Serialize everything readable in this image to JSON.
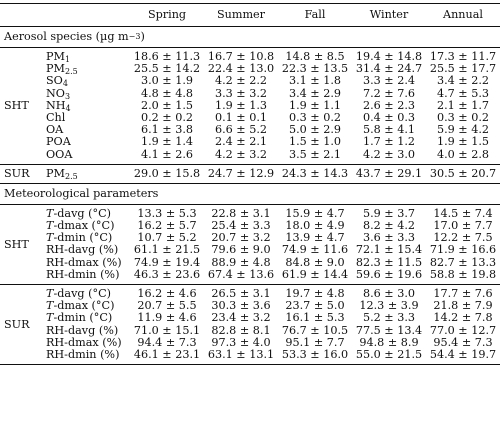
{
  "columns": [
    "Spring",
    "Summer",
    "Fall",
    "Winter",
    "Annual"
  ],
  "aerosol_section_title": "Aerosol species (µg m⁻³)",
  "aerosol_groups": [
    {
      "group": "SHT",
      "rows": [
        {
          "param": "PM1",
          "values": [
            "18.6 ± 11.3",
            "16.7 ± 10.8",
            "14.8 ± 8.5",
            "19.4 ± 14.8",
            "17.3 ± 11.7"
          ]
        },
        {
          "param": "PM2.5",
          "values": [
            "25.5 ± 14.2",
            "22.4 ± 13.0",
            "22.3 ± 13.5",
            "31.4 ± 24.7",
            "25.5 ± 17.7"
          ]
        },
        {
          "param": "SO4",
          "values": [
            "3.0 ± 1.9",
            "4.2 ± 2.2",
            "3.1 ± 1.8",
            "3.3 ± 2.4",
            "3.4 ± 2.2"
          ]
        },
        {
          "param": "NO3",
          "values": [
            "4.8 ± 4.8",
            "3.3 ± 3.2",
            "3.4 ± 2.9",
            "7.2 ± 7.6",
            "4.7 ± 5.3"
          ]
        },
        {
          "param": "NH4",
          "values": [
            "2.0 ± 1.5",
            "1.9 ± 1.3",
            "1.9 ± 1.1",
            "2.6 ± 2.3",
            "2.1 ± 1.7"
          ]
        },
        {
          "param": "Chl",
          "values": [
            "0.2 ± 0.2",
            "0.1 ± 0.1",
            "0.3 ± 0.2",
            "0.4 ± 0.3",
            "0.3 ± 0.2"
          ]
        },
        {
          "param": "OA",
          "values": [
            "6.1 ± 3.8",
            "6.6 ± 5.2",
            "5.0 ± 2.9",
            "5.8 ± 4.1",
            "5.9 ± 4.2"
          ]
        },
        {
          "param": "POA",
          "values": [
            "1.9 ± 1.4",
            "2.4 ± 2.1",
            "1.5 ± 1.0",
            "1.7 ± 1.2",
            "1.9 ± 1.5"
          ]
        },
        {
          "param": "OOA",
          "values": [
            "4.1 ± 2.6",
            "4.2 ± 3.2",
            "3.5 ± 2.1",
            "4.2 ± 3.0",
            "4.0 ± 2.8"
          ]
        }
      ]
    },
    {
      "group": "SUR",
      "rows": [
        {
          "param": "PM2.5",
          "values": [
            "29.0 ± 15.8",
            "24.7 ± 12.9",
            "24.3 ± 14.3",
            "43.7 ± 29.1",
            "30.5 ± 20.7"
          ]
        }
      ]
    }
  ],
  "met_section_title": "Meteorological parameters",
  "met_groups": [
    {
      "group": "SHT",
      "rows": [
        {
          "param_var": "T",
          "param_suffix": "-davg (°C)",
          "values": [
            "13.3 ± 5.3",
            "22.8 ± 3.1",
            "15.9 ± 4.7",
            "5.9 ± 3.7",
            "14.5 ± 7.4"
          ]
        },
        {
          "param_var": "T",
          "param_suffix": "-dmax (°C)",
          "values": [
            "16.2 ± 5.7",
            "25.4 ± 3.3",
            "18.0 ± 4.9",
            "8.2 ± 4.2",
            "17.0 ± 7.7"
          ]
        },
        {
          "param_var": "T",
          "param_suffix": "-dmin (°C)",
          "values": [
            "10.7 ± 5.2",
            "20.7 ± 3.2",
            "13.9 ± 4.7",
            "3.6 ± 3.3",
            "12.2 ± 7.5"
          ]
        },
        {
          "param_var": "",
          "param_suffix": "RH-davg (%)",
          "values": [
            "61.1 ± 21.5",
            "79.6 ± 9.0",
            "74.9 ± 11.6",
            "72.1 ± 15.4",
            "71.9 ± 16.6"
          ]
        },
        {
          "param_var": "",
          "param_suffix": "RH-dmax (%)",
          "values": [
            "74.9 ± 19.4",
            "88.9 ± 4.8",
            "84.8 ± 9.0",
            "82.3 ± 11.5",
            "82.7 ± 13.3"
          ]
        },
        {
          "param_var": "",
          "param_suffix": "RH-dmin (%)",
          "values": [
            "46.3 ± 23.6",
            "67.4 ± 13.6",
            "61.9 ± 14.4",
            "59.6 ± 19.6",
            "58.8 ± 19.8"
          ]
        }
      ]
    },
    {
      "group": "SUR",
      "rows": [
        {
          "param_var": "T",
          "param_suffix": "-davg (°C)",
          "values": [
            "16.2 ± 4.6",
            "26.5 ± 3.1",
            "19.7 ± 4.8",
            "8.6 ± 3.0",
            "17.7 ± 7.6"
          ]
        },
        {
          "param_var": "T",
          "param_suffix": "-dmax (°C)",
          "values": [
            "20.7 ± 5.5",
            "30.3 ± 3.6",
            "23.7 ± 5.0",
            "12.3 ± 3.9",
            "21.8 ± 7.9"
          ]
        },
        {
          "param_var": "T",
          "param_suffix": "-dmin (°C)",
          "values": [
            "11.9 ± 4.6",
            "23.4 ± 3.2",
            "16.1 ± 5.3",
            "5.2 ± 3.3",
            "14.2 ± 7.8"
          ]
        },
        {
          "param_var": "",
          "param_suffix": "RH-davg (%)",
          "values": [
            "71.0 ± 15.1",
            "82.8 ± 8.1",
            "76.7 ± 10.5",
            "77.5 ± 13.4",
            "77.0 ± 12.7"
          ]
        },
        {
          "param_var": "",
          "param_suffix": "RH-dmax (%)",
          "values": [
            "94.4 ± 7.3",
            "97.3 ± 4.0",
            "95.1 ± 7.7",
            "94.8 ± 8.9",
            "95.4 ± 7.3"
          ]
        },
        {
          "param_var": "",
          "param_suffix": "RH-dmin (%)",
          "values": [
            "46.1 ± 23.1",
            "63.1 ± 13.1",
            "53.3 ± 16.0",
            "55.0 ± 21.5",
            "54.4 ± 19.7"
          ]
        }
      ]
    }
  ]
}
